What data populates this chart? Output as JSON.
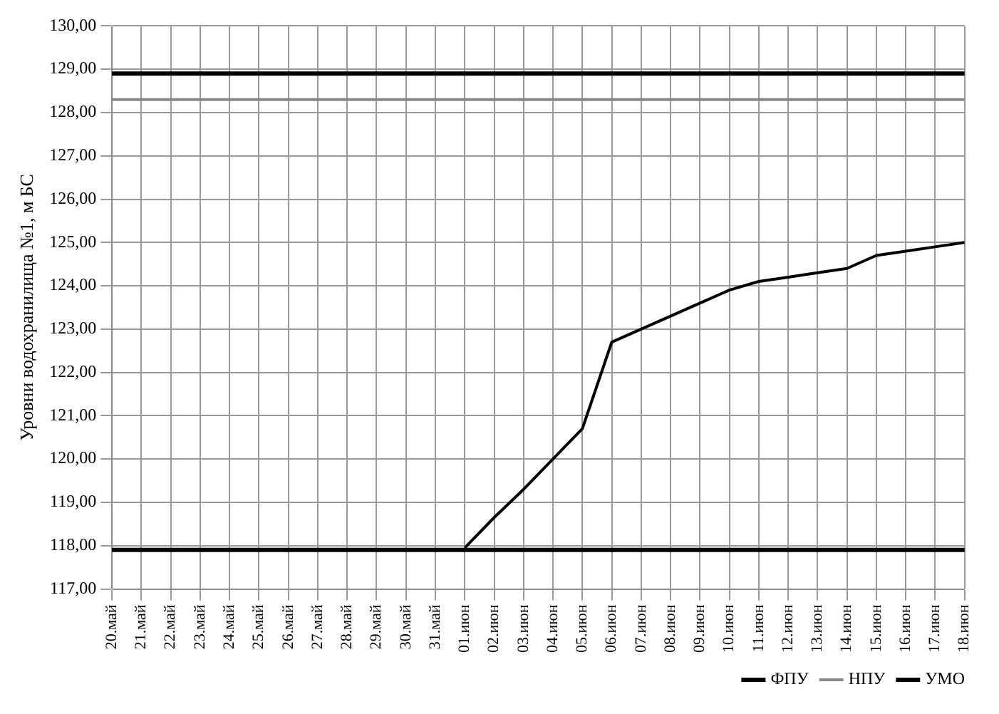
{
  "chart_data": {
    "type": "line",
    "ylabel": "Уровни водохранилища №1, м БС",
    "categories": [
      "20.май",
      "21.май",
      "22.май",
      "23.май",
      "24.май",
      "25.май",
      "26.май",
      "27.май",
      "28.май",
      "29.май",
      "30.май",
      "31.май",
      "01.июн",
      "02.июн",
      "03.июн",
      "04.июн",
      "05.июн",
      "06.июн",
      "07.июн",
      "08.июн",
      "09.июн",
      "10.июн",
      "11.июн",
      "12.июн",
      "13.июн",
      "14.июн",
      "15.июн",
      "16.июн",
      "17.июн",
      "18.июн"
    ],
    "series": [
      {
        "color": "#000000",
        "values": [
          null,
          null,
          null,
          null,
          null,
          null,
          null,
          null,
          null,
          null,
          null,
          null,
          117.95,
          118.65,
          119.3,
          120.0,
          120.7,
          122.7,
          123.0,
          123.3,
          123.6,
          123.9,
          124.1,
          124.2,
          124.3,
          124.4,
          124.7,
          124.8,
          124.9,
          125.0
        ]
      },
      {
        "name": "ФПУ",
        "color": "#000000",
        "values": [
          128.9,
          128.9,
          128.9,
          128.9,
          128.9,
          128.9,
          128.9,
          128.9,
          128.9,
          128.9,
          128.9,
          128.9,
          128.9,
          128.9,
          128.9,
          128.9,
          128.9,
          128.9,
          128.9,
          128.9,
          128.9,
          128.9,
          128.9,
          128.9,
          128.9,
          128.9,
          128.9,
          128.9,
          128.9,
          128.9
        ]
      },
      {
        "name": "НПУ",
        "color": "#888888",
        "values": [
          128.3,
          128.3,
          128.3,
          128.3,
          128.3,
          128.3,
          128.3,
          128.3,
          128.3,
          128.3,
          128.3,
          128.3,
          128.3,
          128.3,
          128.3,
          128.3,
          128.3,
          128.3,
          128.3,
          128.3,
          128.3,
          128.3,
          128.3,
          128.3,
          128.3,
          128.3,
          128.3,
          128.3,
          128.3,
          128.3
        ]
      },
      {
        "name": "УМО",
        "color": "#000000",
        "values": [
          117.9,
          117.9,
          117.9,
          117.9,
          117.9,
          117.9,
          117.9,
          117.9,
          117.9,
          117.9,
          117.9,
          117.9,
          117.9,
          117.9,
          117.9,
          117.9,
          117.9,
          117.9,
          117.9,
          117.9,
          117.9,
          117.9,
          117.9,
          117.9,
          117.9,
          117.9,
          117.9,
          117.9,
          117.9,
          117.9
        ]
      }
    ],
    "ylim": [
      117,
      130
    ],
    "yticks": [
      {
        "value": 117,
        "label": "117,00"
      },
      {
        "value": 118,
        "label": "118,00"
      },
      {
        "value": 119,
        "label": "119,00"
      },
      {
        "value": 120,
        "label": "120,00"
      },
      {
        "value": 121,
        "label": "121,00"
      },
      {
        "value": 122,
        "label": "122,00"
      },
      {
        "value": 123,
        "label": "123,00"
      },
      {
        "value": 124,
        "label": "124,00"
      },
      {
        "value": 125,
        "label": "125,00"
      },
      {
        "value": 126,
        "label": "126,00"
      },
      {
        "value": 127,
        "label": "127,00"
      },
      {
        "value": 128,
        "label": "128,00"
      },
      {
        "value": 129,
        "label": "129,00"
      },
      {
        "value": 130,
        "label": "130,00"
      }
    ],
    "grid": true,
    "legend": "bottom right",
    "marker": "none",
    "line_style": "solid"
  }
}
